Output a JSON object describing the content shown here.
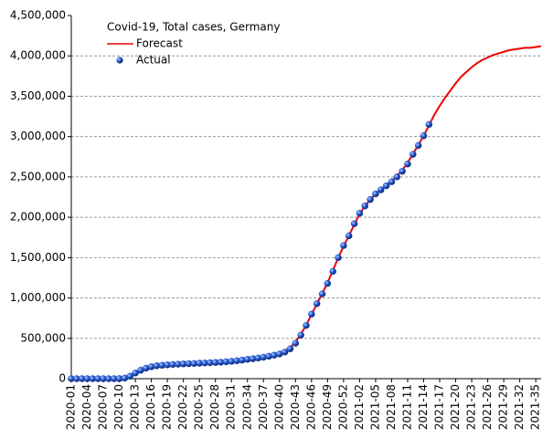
{
  "chart_data": {
    "type": "line",
    "title": "Covid-19, Total cases, Germany",
    "categories": [
      "2020-01",
      null,
      null,
      "2020-04",
      null,
      null,
      "2020-07",
      null,
      null,
      "2020-10",
      null,
      null,
      "2020-13",
      null,
      null,
      "2020-16",
      null,
      null,
      "2020-19",
      null,
      null,
      "2020-22",
      null,
      null,
      "2020-25",
      null,
      null,
      "2020-28",
      null,
      null,
      "2020-31",
      null,
      null,
      "2020-34",
      null,
      null,
      "2020-37",
      null,
      null,
      "2020-40",
      null,
      null,
      "2020-43",
      null,
      null,
      "2020-46",
      null,
      null,
      "2020-49",
      null,
      null,
      "2020-52",
      null,
      null,
      "2021-02",
      null,
      null,
      "2021-05",
      null,
      null,
      "2021-08",
      null,
      null,
      "2021-11",
      null,
      null,
      "2021-14",
      null,
      null,
      "2021-17",
      null,
      null,
      "2021-20",
      null,
      null,
      "2021-23",
      null,
      null,
      "2021-26",
      null,
      null,
      "2021-29",
      null,
      null,
      "2021-32",
      null,
      null,
      "2021-35",
      null
    ],
    "series": [
      {
        "name": "Forecast",
        "color": "#ee0000",
        "style": "line",
        "values": [
          0,
          0,
          0,
          0,
          0,
          0,
          0,
          0,
          200,
          2000,
          9000,
          32000,
          70000,
          103000,
          128000,
          146000,
          158000,
          165000,
          170000,
          175000,
          179000,
          182000,
          185000,
          188000,
          191000,
          194000,
          197000,
          200000,
          204000,
          209000,
          215000,
          222000,
          230000,
          239000,
          247000,
          256000,
          266000,
          278000,
          292000,
          310000,
          338000,
          385000,
          455000,
          550000,
          665000,
          795000,
          925000,
          1055000,
          1190000,
          1340000,
          1500000,
          1640000,
          1770000,
          1910000,
          2040000,
          2140000,
          2220000,
          2285000,
          2340000,
          2395000,
          2450000,
          2510000,
          2585000,
          2675000,
          2785000,
          2895000,
          3010000,
          3140000,
          3270000,
          3380000,
          3480000,
          3570000,
          3660000,
          3740000,
          3800000,
          3860000,
          3910000,
          3950000,
          3980000,
          4010000,
          4030000,
          4050000,
          4070000,
          4080000,
          4090000,
          4100000,
          4100000,
          4110000,
          4120000
        ]
      },
      {
        "name": "Actual",
        "color": "#2255cc",
        "style": "markers",
        "values": [
          0,
          0,
          0,
          0,
          0,
          0,
          0,
          0,
          100,
          1000,
          7000,
          30000,
          70000,
          105000,
          130000,
          148000,
          160000,
          166000,
          171000,
          176000,
          180000,
          183000,
          186000,
          188000,
          192000,
          195000,
          198000,
          201000,
          204000,
          209000,
          215000,
          222000,
          230000,
          240000,
          247000,
          256000,
          266000,
          278000,
          291000,
          306000,
          330000,
          370000,
          440000,
          540000,
          660000,
          800000,
          930000,
          1050000,
          1180000,
          1330000,
          1500000,
          1650000,
          1770000,
          1920000,
          2050000,
          2140000,
          2220000,
          2290000,
          2340000,
          2390000,
          2440000,
          2500000,
          2570000,
          2660000,
          2780000,
          2890000,
          3010000,
          3150000,
          null,
          null,
          null,
          null,
          null,
          null,
          null,
          null,
          null,
          null,
          null,
          null,
          null,
          null,
          null,
          null,
          null,
          null,
          null,
          null,
          null
        ]
      }
    ],
    "ylim": [
      0,
      4500000
    ],
    "yticks": [
      0,
      {
        "value": 500000,
        "label": "500,000"
      },
      {
        "value": 1000000,
        "label": "1,000,000"
      },
      {
        "value": 1500000,
        "label": "1,500,000"
      },
      {
        "value": 2000000,
        "label": "2,000,000"
      },
      {
        "value": 2500000,
        "label": "2,500,000"
      },
      {
        "value": 3000000,
        "label": "3,000,000"
      },
      {
        "value": 3500000,
        "label": "3,500,000"
      },
      {
        "value": 4000000,
        "label": "4,000,000"
      },
      {
        "value": 4500000,
        "label": "4,500,000"
      }
    ],
    "grid": true
  }
}
